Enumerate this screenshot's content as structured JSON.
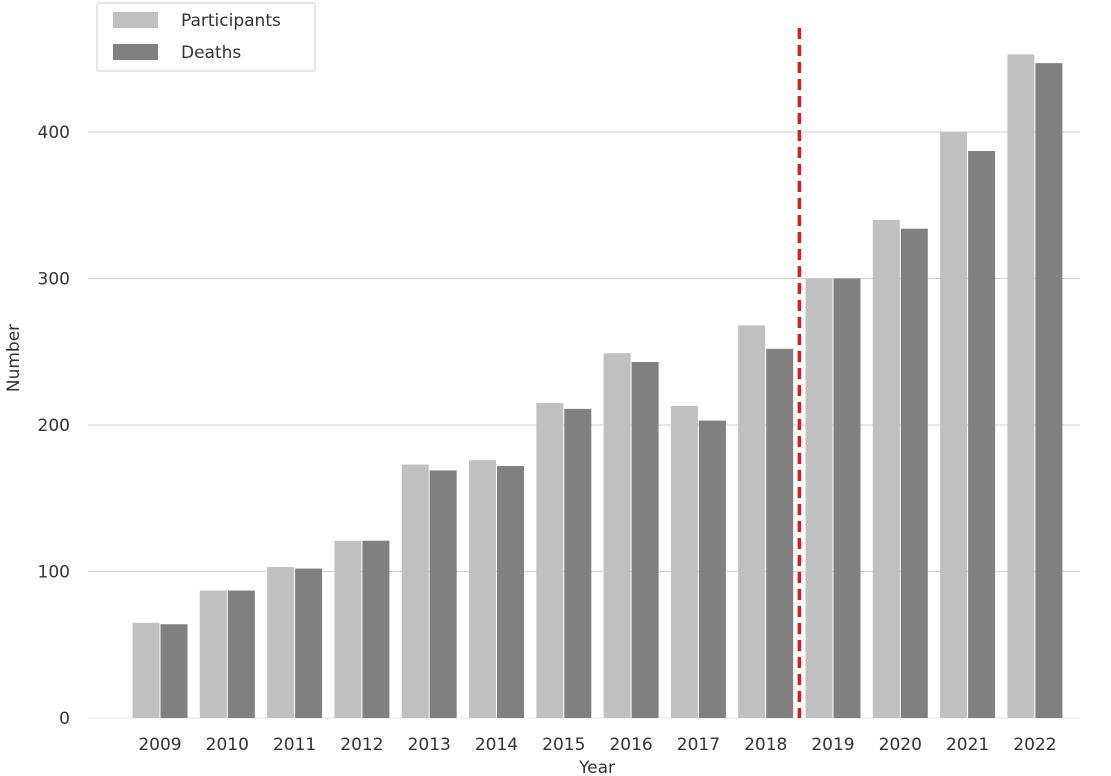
{
  "chart_data": {
    "type": "bar",
    "xlabel": "Year",
    "ylabel": "Number",
    "categories": [
      "2009",
      "2010",
      "2011",
      "2012",
      "2013",
      "2014",
      "2015",
      "2016",
      "2017",
      "2018",
      "2019",
      "2020",
      "2021",
      "2022"
    ],
    "series": [
      {
        "name": "Participants",
        "color": "#c0c0c0",
        "values": [
          65,
          87,
          103,
          121,
          173,
          176,
          215,
          249,
          213,
          268,
          300,
          340,
          400,
          453
        ]
      },
      {
        "name": "Deaths",
        "color": "#808080",
        "values": [
          64,
          87,
          102,
          121,
          169,
          172,
          211,
          243,
          203,
          252,
          300,
          334,
          387,
          447
        ]
      }
    ],
    "yticks": [
      "0",
      "100",
      "200",
      "300",
      "400"
    ],
    "ylim": [
      0,
      470
    ],
    "grid": "horizontal",
    "legend_position": "top-left",
    "reference_line": {
      "between": [
        "2018",
        "2019"
      ],
      "style": "dashed",
      "color": "#dd1c1c"
    }
  }
}
